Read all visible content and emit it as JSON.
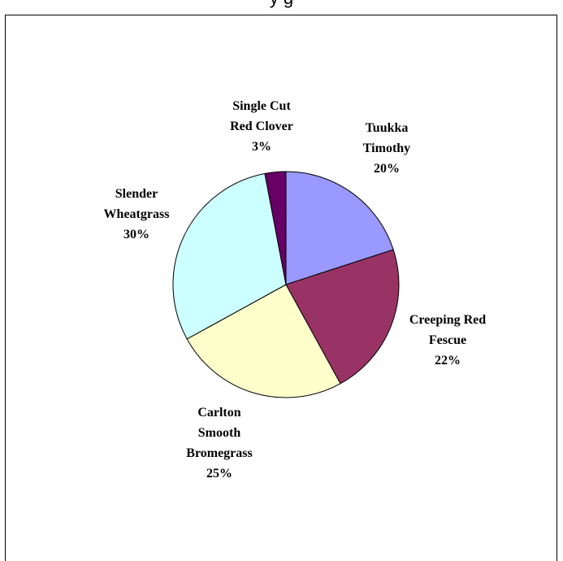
{
  "chart_data": {
    "type": "pie",
    "title": "",
    "start_angle_deg": 0,
    "direction": "clockwise",
    "slices": [
      {
        "label_lines": [
          "Tuukka",
          "Timothy"
        ],
        "percent_label": "20%",
        "value": 20,
        "color": "#9999ff"
      },
      {
        "label_lines": [
          "Creeping Red",
          "Fescue"
        ],
        "percent_label": "22%",
        "value": 22,
        "color": "#993366"
      },
      {
        "label_lines": [
          "Carlton",
          "Smooth",
          "Bromegrass"
        ],
        "percent_label": "25%",
        "value": 25,
        "color": "#ffffcc"
      },
      {
        "label_lines": [
          "Slender",
          "Wheatgrass"
        ],
        "percent_label": "30%",
        "value": 30,
        "color": "#ccffff"
      },
      {
        "label_lines": [
          "Single Cut",
          "Red Clover"
        ],
        "percent_label": "3%",
        "value": 3,
        "color": "#660066"
      }
    ],
    "slice_outline_color": "#000000"
  }
}
